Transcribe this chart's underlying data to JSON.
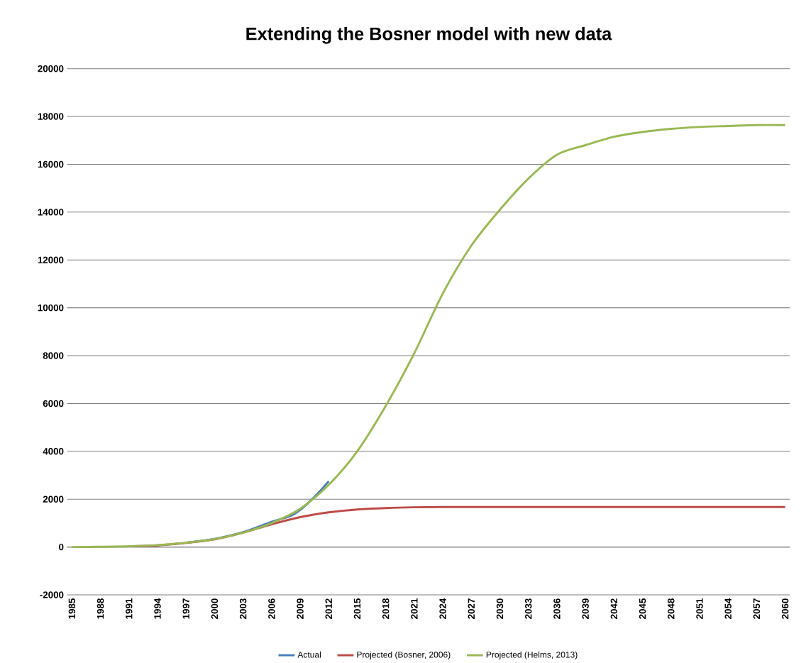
{
  "chart_data": {
    "type": "line",
    "title": "Extending the Bosner model with new data",
    "xlim": [
      1984.5,
      2060.5
    ],
    "xticks": [
      1985,
      1988,
      1991,
      1994,
      1997,
      2000,
      2003,
      2006,
      2009,
      2012,
      2015,
      2018,
      2021,
      2024,
      2027,
      2030,
      2033,
      2036,
      2039,
      2042,
      2045,
      2048,
      2051,
      2054,
      2057,
      2060
    ],
    "ylim": [
      -2000,
      20000
    ],
    "yticks": [
      -2000,
      0,
      2000,
      4000,
      6000,
      8000,
      10000,
      12000,
      14000,
      16000,
      18000,
      20000
    ],
    "grid": "y",
    "legend": "bottom",
    "marker": "none",
    "line_style": "solid",
    "series": [
      {
        "name": "Actual",
        "color": "#4a7ebb",
        "x": [
          1997,
          2000,
          2003,
          2006,
          2008,
          2009,
          2010,
          2011,
          2012
        ],
        "values": [
          180,
          340,
          620,
          1050,
          1300,
          1550,
          1900,
          2300,
          2750
        ]
      },
      {
        "name": "Projected (Bosner, 2006)",
        "color": "#be4b48",
        "x": [
          1991,
          1994,
          1997,
          2000,
          2003,
          2006,
          2009,
          2012,
          2015,
          2018,
          2021,
          2024,
          2030,
          2040,
          2050,
          2060
        ],
        "values": [
          30,
          70,
          170,
          320,
          600,
          950,
          1250,
          1450,
          1570,
          1630,
          1660,
          1670,
          1670,
          1670,
          1670,
          1670
        ]
      },
      {
        "name": "Projected (Helms, 2013)",
        "color": "#98b954",
        "x": [
          1985,
          1988,
          1991,
          1994,
          1997,
          2000,
          2003,
          2006,
          2009,
          2012,
          2015,
          2018,
          2021,
          2024,
          2027,
          2030,
          2033,
          2036,
          2039,
          2042,
          2045,
          2048,
          2051,
          2054,
          2057,
          2060
        ],
        "values": [
          0,
          10,
          30,
          80,
          180,
          330,
          600,
          1000,
          1600,
          2600,
          4000,
          5900,
          8100,
          10600,
          12600,
          14100,
          15400,
          16400,
          16800,
          17150,
          17350,
          17480,
          17560,
          17600,
          17640,
          17640
        ]
      }
    ]
  }
}
